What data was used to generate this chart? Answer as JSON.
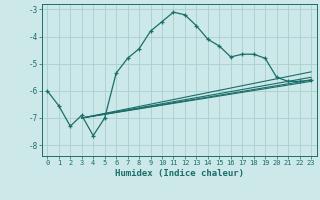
{
  "xlabel": "Humidex (Indice chaleur)",
  "ylabel": "",
  "background_color": "#cde8e8",
  "grid_color": "#aacfcf",
  "line_color": "#1a6e6a",
  "xlim": [
    -0.5,
    23.5
  ],
  "ylim": [
    -8.4,
    -2.8
  ],
  "yticks": [
    -8,
    -7,
    -6,
    -5,
    -4,
    -3
  ],
  "xticks": [
    0,
    1,
    2,
    3,
    4,
    5,
    6,
    7,
    8,
    9,
    10,
    11,
    12,
    13,
    14,
    15,
    16,
    17,
    18,
    19,
    20,
    21,
    22,
    23
  ],
  "main_line": {
    "x": [
      0,
      1,
      2,
      3,
      4,
      5,
      6,
      7,
      8,
      9,
      10,
      11,
      12,
      13,
      14,
      15,
      16,
      17,
      18,
      19,
      20,
      21,
      22,
      23
    ],
    "y": [
      -6.0,
      -6.55,
      -7.3,
      -6.9,
      -7.65,
      -7.0,
      -5.35,
      -4.8,
      -4.45,
      -3.8,
      -3.45,
      -3.1,
      -3.2,
      -3.6,
      -4.1,
      -4.35,
      -4.75,
      -4.65,
      -4.65,
      -4.8,
      -5.5,
      -5.65,
      -5.65,
      -5.6
    ]
  },
  "straight_lines": [
    {
      "x": [
        3,
        23
      ],
      "y": [
        -7.0,
        -5.6
      ]
    },
    {
      "x": [
        3,
        23
      ],
      "y": [
        -7.0,
        -5.65
      ]
    },
    {
      "x": [
        3,
        23
      ],
      "y": [
        -7.0,
        -5.5
      ]
    },
    {
      "x": [
        3,
        23
      ],
      "y": [
        -7.0,
        -5.3
      ]
    }
  ]
}
